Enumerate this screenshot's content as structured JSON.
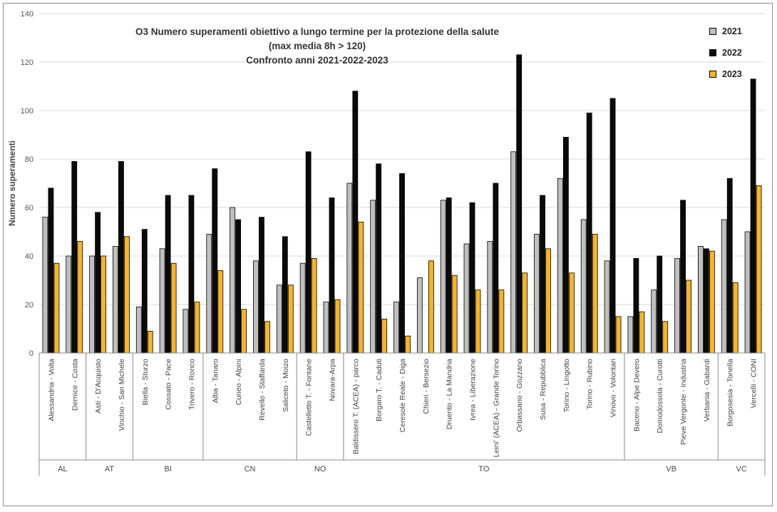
{
  "chart_data": {
    "type": "bar",
    "title": "O3 Numero superamenti obiettivo a lungo termine per la protezione della salute",
    "subtitle": "(max media 8h > 120)",
    "subtitle2": "Confronto anni 2021-2022-2023",
    "ylabel": "Numero superamenti",
    "xlabel": "",
    "ylim": [
      0,
      140
    ],
    "yticks": [
      0,
      20,
      40,
      60,
      80,
      100,
      120,
      140
    ],
    "legend_position": "top-right",
    "colors": {
      "2021": "#bfbfbf",
      "2022": "#0a0a0a",
      "2023": "#f3b431"
    },
    "series": [
      {
        "name": "2021",
        "values": [
          56,
          40,
          40,
          44,
          19,
          43,
          18,
          49,
          60,
          38,
          28,
          37,
          21,
          70,
          63,
          21,
          31,
          63,
          45,
          46,
          83,
          49,
          72,
          55,
          38,
          15,
          26,
          39,
          44,
          55,
          50
        ]
      },
      {
        "name": "2022",
        "values": [
          68,
          79,
          58,
          79,
          51,
          65,
          65,
          76,
          55,
          56,
          48,
          83,
          64,
          108,
          78,
          74,
          null,
          64,
          62,
          70,
          123,
          65,
          89,
          99,
          105,
          39,
          40,
          63,
          43,
          72,
          113
        ]
      },
      {
        "name": "2023",
        "values": [
          37,
          46,
          40,
          48,
          9,
          37,
          21,
          34,
          18,
          13,
          28,
          39,
          22,
          54,
          14,
          7,
          38,
          32,
          26,
          26,
          33,
          43,
          33,
          49,
          15,
          17,
          13,
          30,
          42,
          29,
          69
        ]
      }
    ],
    "categories": [
      "Alessandria - Volta",
      "Dernice - Costa",
      "Asti - D'Acquisto",
      "Vinchio - San Michele",
      "Biella - Sturzo",
      "Cossato - Pace",
      "Trivero - Ronco",
      "Alba - Tanaro",
      "Cuneo - Alpini",
      "Revello - Staffarda",
      "Saliceto - Moizo",
      "Castelletto T. - Fontane",
      "Novara-Arpa",
      "Baldissero T. (ACEA) - parco",
      "Borgaro T. - Caduti",
      "Ceresole Reale - Diga",
      "Chieri - Bersezio",
      "Druento - La Mandria",
      "Ivrea - Liberazione",
      "Leini' (ACEA) - Grande Torino",
      "Orbassano - Gozzano",
      "Susa - Repubblica",
      "Torino - Lingotto",
      "Torino - Rubino",
      "Vinovo - Volontari",
      "Baceno - Alpe Devero",
      "Domodossola - Curotti",
      "Pieve Vergonte - Industria",
      "Verbania - Gabardi",
      "Borgosesia - Tonella",
      "Vercelli - CONI"
    ],
    "groups": [
      {
        "name": "AL",
        "count": 2
      },
      {
        "name": "AT",
        "count": 2
      },
      {
        "name": "BI",
        "count": 3
      },
      {
        "name": "CN",
        "count": 4
      },
      {
        "name": "NO",
        "count": 2
      },
      {
        "name": "TO",
        "count": 12
      },
      {
        "name": "VB",
        "count": 4
      },
      {
        "name": "VC",
        "count": 2
      }
    ]
  }
}
